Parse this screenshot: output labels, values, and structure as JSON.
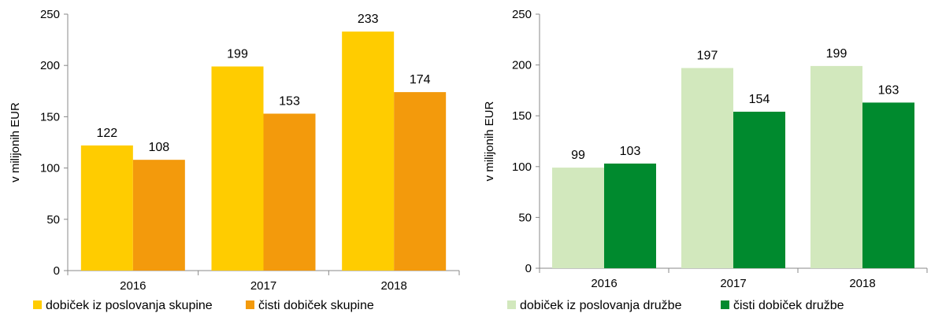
{
  "chart_data": [
    {
      "type": "bar",
      "ylabel": "v milijonih EUR",
      "ylim": [
        0,
        250
      ],
      "yticks": [
        0,
        50,
        100,
        150,
        200,
        250
      ],
      "categories": [
        "2016",
        "2017",
        "2018"
      ],
      "series": [
        {
          "name": "dobiček iz poslovanja skupine",
          "values": [
            122,
            199,
            233
          ],
          "color": "#ffcc00"
        },
        {
          "name": "čisti dobiček skupine",
          "values": [
            108,
            153,
            174
          ],
          "color": "#f39a0c"
        }
      ],
      "legend": "bottom-left",
      "grid": false
    },
    {
      "type": "bar",
      "ylabel": "v milijonih EUR",
      "ylim": [
        0,
        250
      ],
      "yticks": [
        0,
        50,
        100,
        150,
        200,
        250
      ],
      "categories": [
        "2016",
        "2017",
        "2018"
      ],
      "series": [
        {
          "name": "dobiček iz poslovanja družbe",
          "values": [
            99,
            197,
            199
          ],
          "color": "#d2e8bd"
        },
        {
          "name": "čisti dobiček družbe",
          "values": [
            103,
            154,
            163
          ],
          "color": "#008a2e"
        }
      ],
      "legend": "bottom-left",
      "grid": false
    }
  ]
}
